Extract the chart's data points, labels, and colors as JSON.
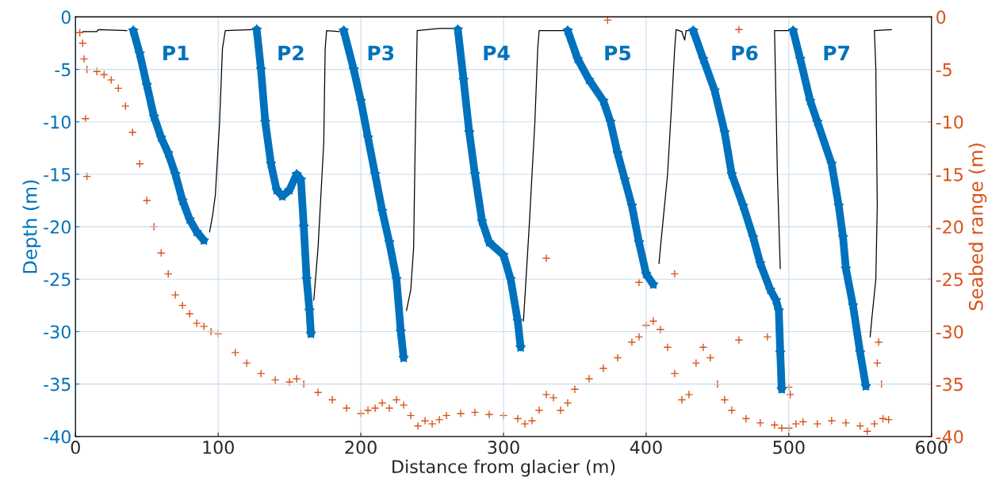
{
  "chart_data": {
    "type": "line",
    "xlabel": "Distance from glacier (m)",
    "ylabel": "Depth (m)",
    "y2label": "Seabed range (m)",
    "xlim": [
      0,
      600
    ],
    "xticks": [
      0,
      100,
      200,
      300,
      400,
      500,
      600
    ],
    "ylim": [
      -40,
      0
    ],
    "yticks": [
      -40,
      -35,
      -30,
      -25,
      -20,
      -15,
      -10,
      -5,
      0
    ],
    "y2lim": [
      -40,
      0
    ],
    "y2ticks": [
      -40,
      -35,
      -30,
      -25,
      -20,
      -15,
      -10,
      -5,
      0
    ],
    "grid": true,
    "annotations": [
      "P1",
      "P2",
      "P3",
      "P4",
      "P5",
      "P6",
      "P7"
    ],
    "series": [
      {
        "color": "#000000",
        "marker": "none",
        "x": [
          5,
          15,
          16,
          36,
          60,
          94,
          96,
          98,
          101,
          103,
          105,
          124,
          150,
          167,
          170,
          174,
          175,
          176,
          185,
          200,
          232,
          235,
          237,
          238,
          239,
          239.5,
          255,
          265,
          290,
          314,
          318,
          322,
          324,
          325,
          342,
          380,
          409,
          410,
          415,
          418,
          420,
          421,
          425,
          427,
          428,
          430,
          460,
          494,
          492,
          490,
          500,
          530,
          557,
          558,
          561,
          562,
          561,
          560,
          572
        ],
        "values": [
          -1.4,
          -1.4,
          -1.2,
          -1.3,
          null,
          -20.5,
          -19,
          -17,
          -10,
          -3,
          -1.3,
          -1.2,
          null,
          -27,
          -22,
          -12,
          -3,
          -1.3,
          -1.4,
          null,
          -28,
          -26,
          -22,
          -13,
          -5,
          -1.3,
          -1.1,
          -1.1,
          null,
          -29,
          -20,
          -10,
          -3,
          -1.3,
          -1.3,
          null,
          -23.5,
          -22,
          -15,
          -8,
          -3,
          -1.2,
          -1.4,
          -2.2,
          -1.3,
          -1.3,
          null,
          -24,
          -15,
          -1.3,
          -1.3,
          null,
          -30.5,
          -29,
          -25,
          -18,
          -5,
          -1.3,
          -1.2
        ]
      },
      {
        "color": "#0072bd",
        "marker": "star",
        "x": [
          40.5,
          45,
          50,
          55,
          60,
          65,
          70,
          75,
          80,
          85,
          90,
          100,
          127,
          130,
          133,
          137,
          141,
          145,
          150,
          155,
          158,
          160,
          162,
          164,
          165,
          175,
          188,
          195,
          200,
          205,
          210,
          215,
          220,
          225,
          228,
          230,
          250,
          268,
          272,
          276,
          280,
          285,
          290,
          300,
          305,
          310,
          312,
          330,
          345,
          352,
          360,
          370,
          375,
          380,
          385,
          390,
          395,
          400,
          405,
          420,
          433,
          440,
          448,
          455,
          460,
          468,
          475,
          480,
          487,
          491,
          493,
          494,
          495,
          500,
          503,
          508,
          515,
          520,
          530,
          535,
          538,
          540,
          545,
          550,
          554
        ],
        "values": [
          -1.3,
          -3.5,
          -6.5,
          -9.5,
          -11.5,
          -13,
          -15,
          -17.5,
          -19.3,
          -20.5,
          -21.3,
          null,
          -1.2,
          -5,
          -10,
          -14,
          -16.5,
          -17.1,
          -16.5,
          -15,
          -15.5,
          -20,
          -25,
          -28,
          -30.2,
          null,
          -1.3,
          -5,
          -8,
          -11.5,
          -15,
          -18.5,
          -21.5,
          -25,
          -30,
          -32.5,
          null,
          -1.2,
          -6,
          -11,
          -15,
          -19.5,
          -21.5,
          -22.7,
          -25,
          -29,
          -31.5,
          null,
          -1.3,
          -4,
          -6,
          -8,
          -10,
          -13,
          -15.5,
          -18,
          -21.5,
          -24.5,
          -25.5,
          null,
          -1.3,
          -4,
          -7,
          -11,
          -15,
          -18,
          -21,
          -23.5,
          -26,
          -27,
          -28,
          -32,
          -35.5,
          null,
          -1.3,
          -4,
          -8,
          -10,
          -14,
          -18,
          -21,
          -24,
          -27.5,
          -32,
          -35.2
        ]
      },
      {
        "type": "scatter",
        "axis": "y2",
        "color": "#d95319",
        "marker": "cross",
        "x": [
          3,
          5,
          6,
          8,
          15,
          20,
          25,
          30,
          35,
          40,
          45,
          50,
          55,
          60,
          65,
          70,
          75,
          80,
          85,
          90,
          95,
          100,
          112,
          120,
          130,
          140,
          150,
          155,
          160,
          170,
          180,
          190,
          200,
          205,
          210,
          215,
          220,
          225,
          230,
          235,
          240,
          245,
          250,
          255,
          260,
          270,
          280,
          290,
          300,
          310,
          315,
          320,
          325,
          330,
          335,
          340,
          345,
          350,
          360,
          370,
          380,
          390,
          395,
          400,
          405,
          410,
          415,
          420,
          425,
          430,
          435,
          440,
          445,
          450,
          455,
          460,
          470,
          480,
          490,
          495,
          500,
          505,
          510,
          520,
          530,
          540,
          550,
          555,
          560,
          562,
          563,
          565,
          566,
          570,
          7,
          8,
          373,
          465,
          330,
          395,
          420,
          465,
          485,
          500,
          501
        ],
        "values": [
          -1.5,
          -2.5,
          -4,
          -5,
          -5.2,
          -5.5,
          -6,
          -6.8,
          -8.5,
          -11,
          -14,
          -17.5,
          -20,
          -22.5,
          -24.5,
          -26.5,
          -27.5,
          -28.3,
          -29.2,
          -29.5,
          -30,
          -30.2,
          -32,
          -33,
          -34,
          -34.6,
          -34.8,
          -34.5,
          -35,
          -35.8,
          -36.5,
          -37.3,
          -37.8,
          -37.5,
          -37.3,
          -36.8,
          -37.3,
          -36.5,
          -37,
          -38,
          -39,
          -38.5,
          -38.8,
          -38.4,
          -38,
          -37.8,
          -37.7,
          -37.9,
          -38,
          -38.3,
          -38.8,
          -38.5,
          -37.5,
          -36,
          -36.3,
          -37.5,
          -36.8,
          -35.5,
          -34.5,
          -33.5,
          -32.5,
          -31,
          -30.5,
          -29.4,
          -29,
          -29.8,
          -31.5,
          -34,
          -36.5,
          -36,
          -33,
          -31.5,
          -32.5,
          -35,
          -36.5,
          -37.5,
          -38.3,
          -38.7,
          -38.9,
          -39.2,
          -39.2,
          -38.8,
          -38.6,
          -38.8,
          -38.5,
          -38.7,
          -39,
          -39.5,
          -38.8,
          -33,
          -31,
          -35,
          -38.3,
          -38.4,
          -9.7,
          -15.2,
          -0.3,
          -1.2,
          -23,
          -25.3,
          -24.5,
          -30.8,
          -30.5,
          -35.3,
          -36
        ]
      }
    ]
  }
}
